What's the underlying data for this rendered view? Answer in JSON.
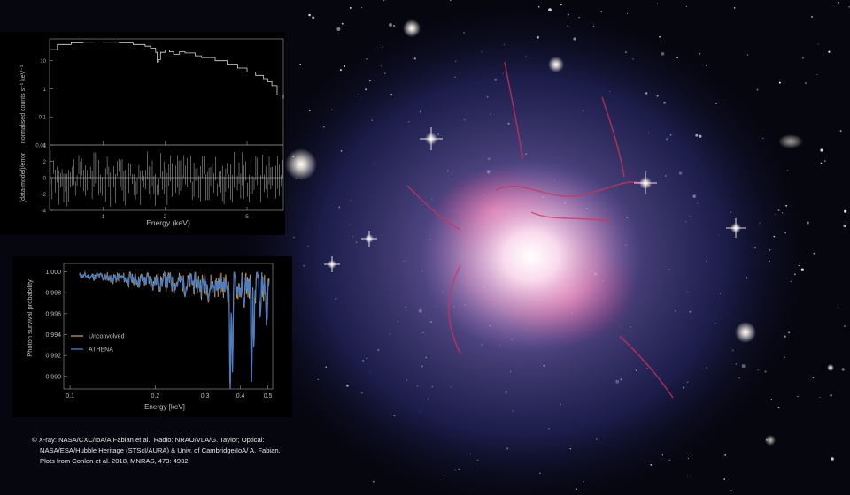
{
  "colors": {
    "space": "#06060f",
    "halo": "#3a3f8a",
    "core": "#ffe8f4",
    "filaments": "#d0345a",
    "unconvolved": "#c8964a",
    "athena": "#4a7fc8",
    "axis": "#9a9a9a"
  },
  "image_content": "galaxy cluster core with starfield",
  "chart_data": [
    {
      "type": "line",
      "panel": "spectrum",
      "xlabel": "Energy (keV)",
      "ylabel_top": "normalised counts s⁻¹ keV⁻¹",
      "ylabel_bottom": "(data-model)/error",
      "x_scale": "log",
      "xlim": [
        0.55,
        7.5
      ],
      "x_ticks": [
        "1",
        "2",
        "5"
      ],
      "top_y_scale": "log",
      "top_ylim": [
        0.01,
        60
      ],
      "top_y_ticks": [
        "10",
        "1",
        "0.1",
        "0.01"
      ],
      "bottom_ylim": [
        -4,
        4
      ],
      "bottom_y_ticks": [
        "4",
        "2",
        "0",
        "-2",
        "-4"
      ],
      "model": {
        "x": [
          0.55,
          0.6,
          0.7,
          0.8,
          0.9,
          1.0,
          1.2,
          1.4,
          1.6,
          1.7,
          1.8,
          1.83,
          1.86,
          1.9,
          2.0,
          2.1,
          2.2,
          2.35,
          2.5,
          2.8,
          3.0,
          3.5,
          4.0,
          4.5,
          5.0,
          5.5,
          6.0,
          6.3,
          6.6,
          7.0,
          7.5
        ],
        "y": [
          25,
          38,
          44,
          46,
          47,
          46,
          43,
          38,
          33,
          28,
          20,
          9,
          11,
          20,
          24,
          21,
          17,
          21,
          19,
          15,
          13,
          10,
          7.5,
          5.5,
          4,
          3,
          2.3,
          1.8,
          1.3,
          0.6,
          0.45
        ]
      },
      "residual_seed": 17
    },
    {
      "type": "line",
      "panel": "absorption",
      "xlabel": "Energy [keV]",
      "ylabel": "Photon survival probability",
      "x_scale": "log",
      "xlim": [
        0.095,
        0.52
      ],
      "x_ticks": [
        "0.1",
        "0.2",
        "0.3",
        "0.4",
        "0.5"
      ],
      "ylim": [
        0.9888,
        1.0008
      ],
      "y_ticks": [
        "1.000",
        "0.998",
        "0.996",
        "0.994",
        "0.992",
        "0.990"
      ],
      "legend_position": "lower-left",
      "series": [
        {
          "name": "Unconvolved",
          "color": "#c8964a"
        },
        {
          "name": "ATHENA",
          "color": "#4a7fc8"
        }
      ],
      "dips": [
        {
          "x": 0.368,
          "depth": 0.0105
        },
        {
          "x": 0.375,
          "depth": 0.0085
        },
        {
          "x": 0.41,
          "depth": 0.003
        },
        {
          "x": 0.438,
          "depth": 0.0095
        },
        {
          "x": 0.446,
          "depth": 0.007
        },
        {
          "x": 0.47,
          "depth": 0.004
        },
        {
          "x": 0.495,
          "depth": 0.0038
        }
      ]
    }
  ],
  "credit": {
    "line1": "© X-ray: NASA/CXC/IoA/A.Fabian et al.; Radio: NRAO/VLA/G. Taylor; Optical:",
    "line2": "NASA/ESA/Hubble Heritage (STScI/AURA) & Univ. of Cambridge/IoA/ A. Fabian.",
    "line3": "Plots from Conlon et al. 2018, MNRAS, 473: 4932."
  }
}
